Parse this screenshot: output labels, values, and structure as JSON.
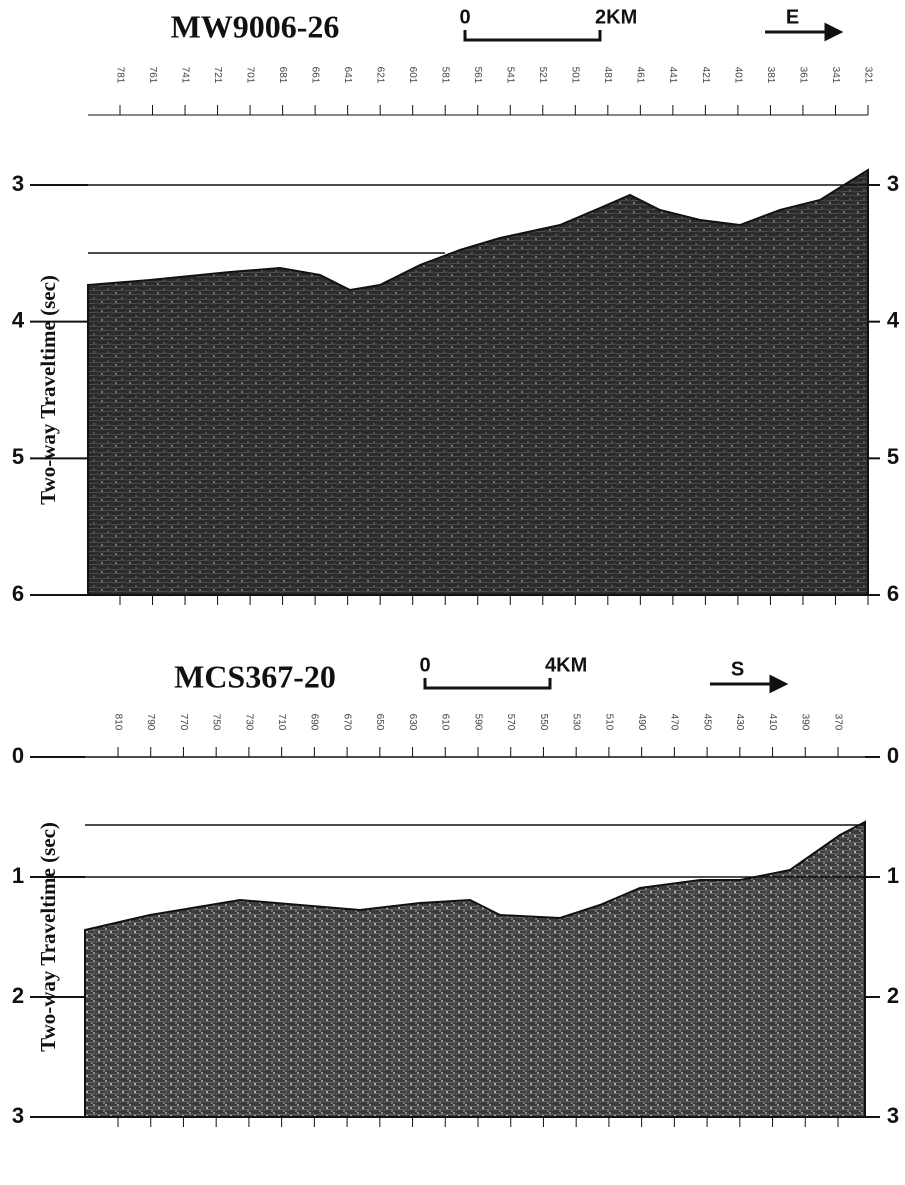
{
  "panels": [
    {
      "title": "MW9006-26",
      "scale_bar": {
        "start": "0",
        "end": "2KM"
      },
      "direction": "E",
      "shot_points": [
        "781",
        "761",
        "741",
        "721",
        "701",
        "681",
        "661",
        "641",
        "621",
        "601",
        "581",
        "561",
        "541",
        "521",
        "501",
        "481",
        "461",
        "441",
        "421",
        "401",
        "381",
        "361",
        "341",
        "321"
      ],
      "y_axis": {
        "label": "Two-way Traveltime (sec)",
        "ticks": [
          3,
          4,
          5,
          6
        ]
      }
    },
    {
      "title": "MCS367-20",
      "scale_bar": {
        "start": "0",
        "end": "4KM"
      },
      "direction": "S",
      "shot_points": [
        "810",
        "790",
        "770",
        "750",
        "730",
        "710",
        "690",
        "670",
        "650",
        "630",
        "610",
        "590",
        "570",
        "550",
        "530",
        "510",
        "490",
        "470",
        "450",
        "430",
        "410",
        "390",
        "370"
      ],
      "y_axis": {
        "label": "Two-way Traveltime (sec)",
        "ticks": [
          0,
          1,
          2,
          3
        ]
      }
    }
  ]
}
